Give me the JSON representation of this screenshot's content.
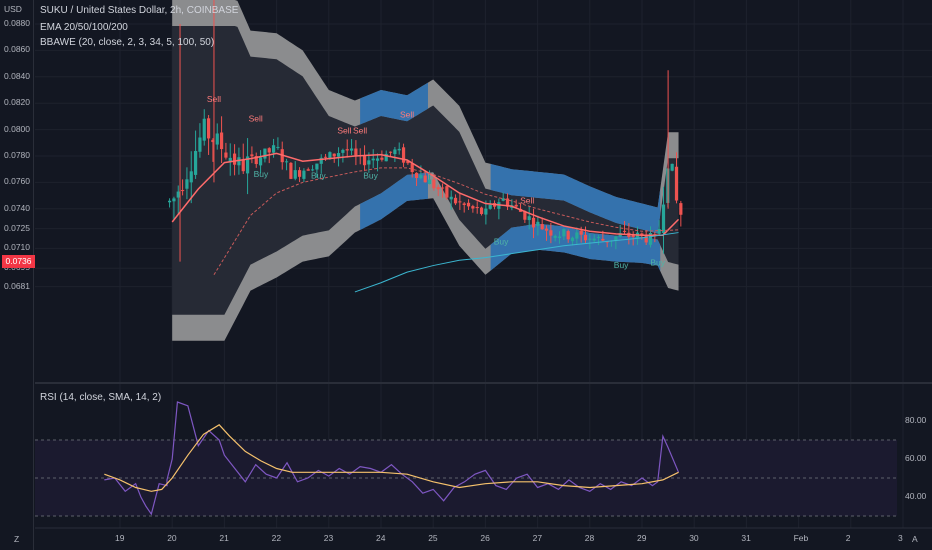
{
  "header": {
    "symbol": "SUKU / United States Dollar, 2h, COINBASE",
    "ema": "EMA 20/50/100/200",
    "bbawe": "BBAWE (20, close, 2, 3, 34, 5, 100, 50)",
    "rsi": "RSI (14, close, SMA, 14, 2)",
    "currency": "USD",
    "current_price": "0.0736",
    "corner_left": "Z",
    "corner_right": "A"
  },
  "colors": {
    "bg": "#131722",
    "up": "#26a69a",
    "down": "#ef5350",
    "band": "#9e9e9e",
    "band_blue": "#2a6fb0",
    "rsi": "#7e57c2",
    "rsi_ma": "#f5c16c"
  },
  "chart_data": [
    {
      "type": "line",
      "name": "price",
      "price_axis_labels": [
        "0.0880",
        "0.0860",
        "0.0840",
        "0.0820",
        "0.0800",
        "0.0780",
        "0.0760",
        "0.0740",
        "0.0725",
        "0.0710",
        "0.0695",
        "0.0681"
      ],
      "x_ticks": [
        "19",
        "20",
        "21",
        "22",
        "23",
        "24",
        "25",
        "26",
        "27",
        "28",
        "29",
        "30",
        "31",
        "Feb",
        "2",
        "3"
      ],
      "ylim": [
        0.0675,
        0.0885
      ],
      "close_path": [
        {
          "x": 20.0,
          "y": 0.0745
        },
        {
          "x": 20.3,
          "y": 0.077
        },
        {
          "x": 20.6,
          "y": 0.08
        },
        {
          "x": 21.0,
          "y": 0.0785
        },
        {
          "x": 21.3,
          "y": 0.0772
        },
        {
          "x": 21.6,
          "y": 0.0778
        },
        {
          "x": 22.0,
          "y": 0.0786
        },
        {
          "x": 22.3,
          "y": 0.0765
        },
        {
          "x": 22.6,
          "y": 0.0772
        },
        {
          "x": 23.0,
          "y": 0.0779
        },
        {
          "x": 23.3,
          "y": 0.0786
        },
        {
          "x": 23.6,
          "y": 0.0776
        },
        {
          "x": 24.0,
          "y": 0.078
        },
        {
          "x": 24.3,
          "y": 0.0784
        },
        {
          "x": 24.6,
          "y": 0.077
        },
        {
          "x": 25.0,
          "y": 0.0758
        },
        {
          "x": 25.3,
          "y": 0.0748
        },
        {
          "x": 25.6,
          "y": 0.0742
        },
        {
          "x": 26.0,
          "y": 0.0736
        },
        {
          "x": 26.3,
          "y": 0.0748
        },
        {
          "x": 26.6,
          "y": 0.074
        },
        {
          "x": 27.0,
          "y": 0.0728
        },
        {
          "x": 27.3,
          "y": 0.0722
        },
        {
          "x": 27.6,
          "y": 0.072
        },
        {
          "x": 28.0,
          "y": 0.0718
        },
        {
          "x": 28.3,
          "y": 0.0716
        },
        {
          "x": 28.6,
          "y": 0.072
        },
        {
          "x": 29.0,
          "y": 0.0719
        },
        {
          "x": 29.3,
          "y": 0.0716
        },
        {
          "x": 29.5,
          "y": 0.0782
        },
        {
          "x": 29.7,
          "y": 0.0736
        }
      ],
      "ema_fast": [
        {
          "x": 20.0,
          "y": 0.073
        },
        {
          "x": 20.5,
          "y": 0.0755
        },
        {
          "x": 21.0,
          "y": 0.0775
        },
        {
          "x": 21.5,
          "y": 0.0778
        },
        {
          "x": 22.0,
          "y": 0.0782
        },
        {
          "x": 22.5,
          "y": 0.0776
        },
        {
          "x": 23.0,
          "y": 0.0778
        },
        {
          "x": 23.5,
          "y": 0.078
        },
        {
          "x": 24.0,
          "y": 0.0781
        },
        {
          "x": 24.5,
          "y": 0.0777
        },
        {
          "x": 25.0,
          "y": 0.0765
        },
        {
          "x": 25.5,
          "y": 0.0752
        },
        {
          "x": 26.0,
          "y": 0.0744
        },
        {
          "x": 26.5,
          "y": 0.0742
        },
        {
          "x": 27.0,
          "y": 0.0734
        },
        {
          "x": 27.5,
          "y": 0.0727
        },
        {
          "x": 28.0,
          "y": 0.0723
        },
        {
          "x": 28.5,
          "y": 0.0721
        },
        {
          "x": 29.0,
          "y": 0.072
        },
        {
          "x": 29.4,
          "y": 0.072
        },
        {
          "x": 29.7,
          "y": 0.0732
        }
      ],
      "ema_slow": [
        {
          "x": 20.8,
          "y": 0.069
        },
        {
          "x": 21.5,
          "y": 0.0735
        },
        {
          "x": 22.0,
          "y": 0.0752
        },
        {
          "x": 22.5,
          "y": 0.076
        },
        {
          "x": 23.0,
          "y": 0.0764
        },
        {
          "x": 23.5,
          "y": 0.0768
        },
        {
          "x": 24.0,
          "y": 0.0771
        },
        {
          "x": 24.5,
          "y": 0.0771
        },
        {
          "x": 25.0,
          "y": 0.0766
        },
        {
          "x": 25.5,
          "y": 0.0759
        },
        {
          "x": 26.0,
          "y": 0.0751
        },
        {
          "x": 26.5,
          "y": 0.0746
        },
        {
          "x": 27.0,
          "y": 0.074
        },
        {
          "x": 27.5,
          "y": 0.0735
        },
        {
          "x": 28.0,
          "y": 0.073
        },
        {
          "x": 28.5,
          "y": 0.0726
        },
        {
          "x": 29.0,
          "y": 0.0723
        },
        {
          "x": 29.7,
          "y": 0.0724
        }
      ],
      "ema_200": [
        {
          "x": 23.5,
          "y": 0.0677
        },
        {
          "x": 24.0,
          "y": 0.0684
        },
        {
          "x": 24.5,
          "y": 0.0692
        },
        {
          "x": 25.0,
          "y": 0.0697
        },
        {
          "x": 25.5,
          "y": 0.0701
        },
        {
          "x": 26.0,
          "y": 0.0703
        },
        {
          "x": 26.5,
          "y": 0.0706
        },
        {
          "x": 27.0,
          "y": 0.0709
        },
        {
          "x": 27.5,
          "y": 0.0712
        },
        {
          "x": 28.0,
          "y": 0.0714
        },
        {
          "x": 28.5,
          "y": 0.0716
        },
        {
          "x": 29.0,
          "y": 0.0718
        },
        {
          "x": 29.7,
          "y": 0.0722
        }
      ],
      "upper_band": [
        {
          "x": 20.0,
          "y": 0.092
        },
        {
          "x": 21.0,
          "y": 0.092
        },
        {
          "x": 21.5,
          "y": 0.0875
        },
        {
          "x": 22.0,
          "y": 0.0873
        },
        {
          "x": 22.5,
          "y": 0.086
        },
        {
          "x": 23.0,
          "y": 0.083
        },
        {
          "x": 23.5,
          "y": 0.0822
        },
        {
          "x": 24.0,
          "y": 0.083
        },
        {
          "x": 24.5,
          "y": 0.0826
        },
        {
          "x": 25.0,
          "y": 0.0838
        },
        {
          "x": 25.5,
          "y": 0.0818
        },
        {
          "x": 26.0,
          "y": 0.0775
        },
        {
          "x": 26.5,
          "y": 0.077
        },
        {
          "x": 27.0,
          "y": 0.0768
        },
        {
          "x": 27.5,
          "y": 0.0766
        },
        {
          "x": 28.0,
          "y": 0.0757
        },
        {
          "x": 28.5,
          "y": 0.0749
        },
        {
          "x": 29.0,
          "y": 0.0744
        },
        {
          "x": 29.3,
          "y": 0.0741
        },
        {
          "x": 29.5,
          "y": 0.0798
        },
        {
          "x": 29.7,
          "y": 0.0798
        }
      ],
      "lower_band": [
        {
          "x": 20.0,
          "y": 0.064
        },
        {
          "x": 21.0,
          "y": 0.064
        },
        {
          "x": 21.5,
          "y": 0.0678
        },
        {
          "x": 22.0,
          "y": 0.0688
        },
        {
          "x": 22.5,
          "y": 0.07
        },
        {
          "x": 23.0,
          "y": 0.0704
        },
        {
          "x": 23.5,
          "y": 0.0722
        },
        {
          "x": 24.0,
          "y": 0.0732
        },
        {
          "x": 24.5,
          "y": 0.0746
        },
        {
          "x": 25.0,
          "y": 0.0748
        },
        {
          "x": 25.5,
          "y": 0.0712
        },
        {
          "x": 26.0,
          "y": 0.069
        },
        {
          "x": 26.5,
          "y": 0.0706
        },
        {
          "x": 27.0,
          "y": 0.0709
        },
        {
          "x": 27.5,
          "y": 0.0707
        },
        {
          "x": 28.0,
          "y": 0.0702
        },
        {
          "x": 28.5,
          "y": 0.07
        },
        {
          "x": 29.0,
          "y": 0.0699
        },
        {
          "x": 29.3,
          "y": 0.0697
        },
        {
          "x": 29.5,
          "y": 0.068
        },
        {
          "x": 29.7,
          "y": 0.0678
        }
      ],
      "signals": [
        {
          "text": "Sell",
          "x": 20.8,
          "y": 0.0821
        },
        {
          "text": "Sell",
          "x": 21.6,
          "y": 0.0806
        },
        {
          "text": "Sell",
          "x": 23.3,
          "y": 0.0797
        },
        {
          "text": "Sell",
          "x": 23.6,
          "y": 0.0797
        },
        {
          "text": "Sell",
          "x": 24.5,
          "y": 0.0809
        },
        {
          "text": "Sell",
          "x": 26.8,
          "y": 0.0744
        },
        {
          "text": "Buy",
          "x": 21.7,
          "y": 0.0764
        },
        {
          "text": "Buy",
          "x": 22.8,
          "y": 0.0763
        },
        {
          "text": "Buy",
          "x": 23.8,
          "y": 0.0763
        },
        {
          "text": "Buy",
          "x": 26.3,
          "y": 0.0713
        },
        {
          "text": "Buy",
          "x": 28.6,
          "y": 0.0695
        },
        {
          "text": "Buy",
          "x": 29.3,
          "y": 0.0697
        }
      ]
    },
    {
      "type": "line",
      "name": "RSI",
      "y_axis_labels": [
        "80.00",
        "60.00",
        "40.00"
      ],
      "ylim": [
        20,
        95
      ],
      "levels": [
        70,
        50,
        30
      ],
      "values": [
        {
          "x": 19.9,
          "y": 49
        },
        {
          "x": 20.0,
          "y": 60
        },
        {
          "x": 20.1,
          "y": 90
        },
        {
          "x": 20.3,
          "y": 88
        },
        {
          "x": 20.5,
          "y": 67
        },
        {
          "x": 20.7,
          "y": 75
        },
        {
          "x": 20.9,
          "y": 70
        },
        {
          "x": 21.0,
          "y": 62
        },
        {
          "x": 21.2,
          "y": 55
        },
        {
          "x": 21.4,
          "y": 48
        },
        {
          "x": 21.6,
          "y": 57
        },
        {
          "x": 21.8,
          "y": 52
        },
        {
          "x": 22.0,
          "y": 50
        },
        {
          "x": 22.2,
          "y": 58
        },
        {
          "x": 22.4,
          "y": 48
        },
        {
          "x": 22.6,
          "y": 50
        },
        {
          "x": 22.8,
          "y": 54
        },
        {
          "x": 23.0,
          "y": 51
        },
        {
          "x": 23.2,
          "y": 55
        },
        {
          "x": 23.4,
          "y": 52
        },
        {
          "x": 23.6,
          "y": 56
        },
        {
          "x": 23.8,
          "y": 55
        },
        {
          "x": 24.0,
          "y": 53
        },
        {
          "x": 24.2,
          "y": 57
        },
        {
          "x": 24.4,
          "y": 52
        },
        {
          "x": 24.6,
          "y": 48
        },
        {
          "x": 24.8,
          "y": 42
        },
        {
          "x": 25.0,
          "y": 44
        },
        {
          "x": 25.2,
          "y": 38
        },
        {
          "x": 25.4,
          "y": 45
        },
        {
          "x": 25.6,
          "y": 48
        },
        {
          "x": 25.8,
          "y": 52
        },
        {
          "x": 26.0,
          "y": 54
        },
        {
          "x": 26.2,
          "y": 46
        },
        {
          "x": 26.4,
          "y": 44
        },
        {
          "x": 26.6,
          "y": 50
        },
        {
          "x": 26.8,
          "y": 52
        },
        {
          "x": 27.0,
          "y": 45
        },
        {
          "x": 27.2,
          "y": 47
        },
        {
          "x": 27.4,
          "y": 44
        },
        {
          "x": 27.6,
          "y": 49
        },
        {
          "x": 27.8,
          "y": 45
        },
        {
          "x": 28.0,
          "y": 43
        },
        {
          "x": 28.2,
          "y": 47
        },
        {
          "x": 28.4,
          "y": 44
        },
        {
          "x": 28.6,
          "y": 48
        },
        {
          "x": 28.8,
          "y": 46
        },
        {
          "x": 29.0,
          "y": 50
        },
        {
          "x": 29.2,
          "y": 46
        },
        {
          "x": 29.3,
          "y": 48
        },
        {
          "x": 29.4,
          "y": 72
        },
        {
          "x": 29.5,
          "y": 66
        },
        {
          "x": 29.7,
          "y": 53
        }
      ],
      "ma": [
        {
          "x": 18.7,
          "y": 52
        },
        {
          "x": 19.0,
          "y": 49
        },
        {
          "x": 19.3,
          "y": 45
        },
        {
          "x": 19.6,
          "y": 43
        },
        {
          "x": 19.8,
          "y": 44
        },
        {
          "x": 20.0,
          "y": 50
        },
        {
          "x": 20.3,
          "y": 62
        },
        {
          "x": 20.6,
          "y": 73
        },
        {
          "x": 20.9,
          "y": 78
        },
        {
          "x": 21.1,
          "y": 72
        },
        {
          "x": 21.4,
          "y": 64
        },
        {
          "x": 21.7,
          "y": 59
        },
        {
          "x": 22.0,
          "y": 55
        },
        {
          "x": 22.3,
          "y": 53
        },
        {
          "x": 22.6,
          "y": 53
        },
        {
          "x": 23.0,
          "y": 53
        },
        {
          "x": 23.5,
          "y": 53
        },
        {
          "x": 24.0,
          "y": 53
        },
        {
          "x": 24.5,
          "y": 52
        },
        {
          "x": 25.0,
          "y": 48
        },
        {
          "x": 25.5,
          "y": 45
        },
        {
          "x": 26.0,
          "y": 47
        },
        {
          "x": 26.5,
          "y": 48
        },
        {
          "x": 27.0,
          "y": 48
        },
        {
          "x": 27.5,
          "y": 46
        },
        {
          "x": 28.0,
          "y": 45
        },
        {
          "x": 28.5,
          "y": 46
        },
        {
          "x": 29.0,
          "y": 47
        },
        {
          "x": 29.4,
          "y": 49
        },
        {
          "x": 29.7,
          "y": 53
        }
      ]
    }
  ]
}
